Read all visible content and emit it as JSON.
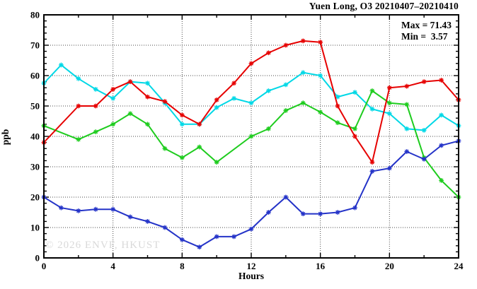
{
  "title": "Yuen Long, O3 20210407–20210410",
  "stats": {
    "max_label": "Max = 71.43",
    "min_label": "Min =  3.57"
  },
  "watermark": "© 2026 ENVF, HKUST",
  "chart_data": {
    "type": "line",
    "title": "Yuen Long, O3 20210407–20210410",
    "xlabel": "Hours",
    "ylabel": "ppb",
    "xlim": [
      0,
      24
    ],
    "ylim": [
      0,
      80
    ],
    "x_tick_labels": [
      0,
      4,
      8,
      12,
      16,
      20,
      24
    ],
    "x_gridlines": [
      4,
      8,
      12,
      16,
      20
    ],
    "y_tick_labels": [
      0,
      10,
      20,
      30,
      40,
      50,
      60,
      70,
      80
    ],
    "y_gridlines": [
      10,
      20,
      30,
      40,
      50,
      60,
      70
    ],
    "minor_tick_step_x": 2,
    "minor_tick_step_y": 2,
    "grid": "dotted",
    "legend": "none",
    "annotations": {
      "max": "Max = 71.43",
      "min": "Min =  3.57"
    },
    "x": [
      0,
      1,
      2,
      3,
      4,
      5,
      6,
      7,
      8,
      9,
      10,
      11,
      12,
      13,
      14,
      15,
      16,
      17,
      18,
      19,
      20,
      21,
      22,
      23,
      24
    ],
    "series": [
      {
        "name": "cyan-line",
        "color": "#00d8e6",
        "values": [
          57.5,
          63.5,
          59,
          55.5,
          52.5,
          58,
          57.5,
          51,
          44,
          44,
          49.5,
          52.5,
          51,
          55,
          57,
          61,
          60,
          53,
          54.5,
          49,
          47.5,
          42.5,
          42,
          47,
          43.5
        ]
      },
      {
        "name": "green-line",
        "color": "#1ecc1e",
        "values": [
          43.5,
          null,
          39,
          41.5,
          44,
          47.5,
          44,
          36,
          33,
          36.5,
          31.5,
          null,
          40,
          42.5,
          48.5,
          51,
          48,
          44.5,
          42.5,
          55,
          51,
          50.5,
          33,
          25.5,
          20
        ]
      },
      {
        "name": "blue-line",
        "color": "#2433c8",
        "values": [
          20,
          16.5,
          15.5,
          16,
          16,
          13.5,
          12,
          10,
          6,
          3.57,
          7,
          7,
          9.5,
          15,
          20,
          14.5,
          14.5,
          15,
          16.5,
          28.5,
          29.5,
          35,
          32.5,
          37,
          38.5
        ]
      },
      {
        "name": "red-line",
        "color": "#e60000",
        "values": [
          38,
          null,
          50,
          50,
          55.5,
          58,
          53,
          51.5,
          47,
          44,
          52,
          57.5,
          64,
          67.5,
          70,
          71.43,
          71,
          50,
          40,
          31.5,
          56,
          56.5,
          58,
          58.5,
          52
        ]
      }
    ]
  }
}
